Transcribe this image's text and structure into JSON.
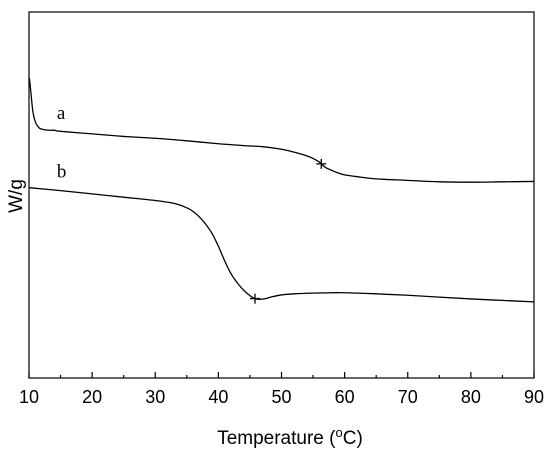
{
  "chart_data": {
    "type": "line",
    "title": "",
    "xlabel": "Temperature (°C)",
    "xlabel_parts": {
      "main": "Temperature (",
      "sup": "o",
      "end": "C)"
    },
    "ylabel": "W/g",
    "xlim": [
      10,
      90
    ],
    "y_ticks_shown": false,
    "grid": false,
    "legend": "none",
    "x_ticks": [
      "10",
      "20",
      "30",
      "40",
      "50",
      "60",
      "70",
      "80",
      "90"
    ],
    "series": [
      {
        "name": "a",
        "x": [
          10.05,
          10.3,
          10.6,
          11.0,
          11.5,
          12.0,
          13.0,
          14.0,
          15.0,
          20,
          25,
          30,
          35,
          40,
          44,
          47,
          50,
          52,
          54,
          55,
          56,
          56.3,
          57,
          58,
          59,
          60,
          62,
          65,
          70,
          75,
          80,
          85,
          90
        ],
        "y": [
          0.82,
          0.78,
          0.73,
          0.7,
          0.685,
          0.68,
          0.677,
          0.677,
          0.674,
          0.667,
          0.66,
          0.655,
          0.648,
          0.64,
          0.635,
          0.632,
          0.625,
          0.617,
          0.607,
          0.6,
          0.59,
          0.585,
          0.575,
          0.567,
          0.56,
          0.555,
          0.55,
          0.544,
          0.54,
          0.536,
          0.535,
          0.536,
          0.537
        ],
        "marker": {
          "x": 56.3,
          "y": 0.585
        }
      },
      {
        "name": "b",
        "x": [
          10,
          15,
          20,
          25,
          30,
          33,
          35,
          36,
          37,
          38,
          39,
          40,
          41,
          42,
          43,
          44,
          45,
          45.8,
          46.5,
          47.5,
          48.5,
          50,
          52,
          55,
          58,
          60,
          65,
          70,
          75,
          80,
          85,
          90
        ],
        "y": [
          0.52,
          0.512,
          0.503,
          0.494,
          0.485,
          0.477,
          0.465,
          0.455,
          0.44,
          0.42,
          0.395,
          0.36,
          0.32,
          0.285,
          0.26,
          0.24,
          0.225,
          0.217,
          0.215,
          0.217,
          0.222,
          0.227,
          0.23,
          0.232,
          0.233,
          0.233,
          0.23,
          0.226,
          0.221,
          0.216,
          0.212,
          0.208
        ],
        "marker": {
          "x": 45.8,
          "y": 0.217
        }
      }
    ]
  }
}
